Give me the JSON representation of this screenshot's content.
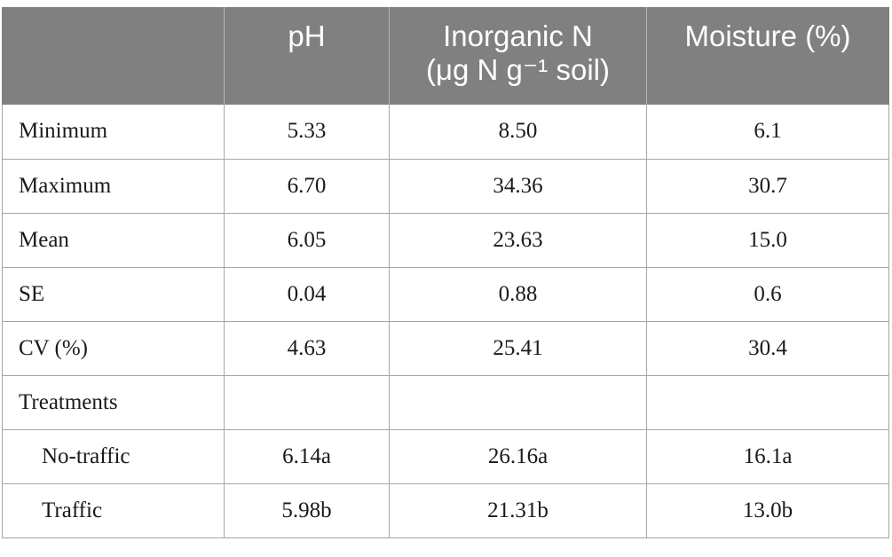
{
  "table": {
    "headers": [
      "",
      "pH",
      "Inorganic N",
      "Moisture (%)"
    ],
    "header_inorganic_line2": "(μg N g⁻¹ soil)",
    "rows": [
      {
        "label": "Minimum",
        "ph": "5.33",
        "inorganic_n": "8.50",
        "moisture": "6.1"
      },
      {
        "label": "Maximum",
        "ph": "6.70",
        "inorganic_n": "34.36",
        "moisture": "30.7"
      },
      {
        "label": "Mean",
        "ph": "6.05",
        "inorganic_n": "23.63",
        "moisture": "15.0"
      },
      {
        "label": "SE",
        "ph": "0.04",
        "inorganic_n": "0.88",
        "moisture": "0.6"
      },
      {
        "label": "CV (%)",
        "ph": "4.63",
        "inorganic_n": "25.41",
        "moisture": "30.4"
      },
      {
        "label": "Treatments",
        "ph": "",
        "inorganic_n": "",
        "moisture": ""
      },
      {
        "label": "No-traffic",
        "ph": "6.14a",
        "inorganic_n": "26.16a",
        "moisture": "16.1a"
      },
      {
        "label": "Traffic",
        "ph": "5.98b",
        "inorganic_n": "21.31b",
        "moisture": "13.0b"
      }
    ]
  }
}
